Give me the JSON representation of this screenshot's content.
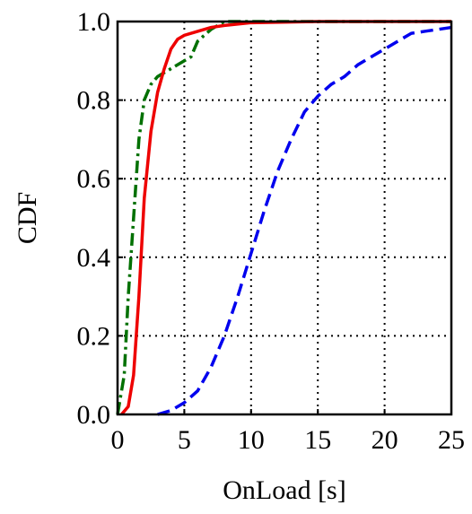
{
  "chart_data": {
    "type": "line",
    "xlabel": "OnLoad [s]",
    "ylabel": "CDF",
    "xlim": [
      0,
      25
    ],
    "xticks": [
      0,
      5,
      10,
      15,
      20,
      25
    ],
    "ylim": [
      0,
      1
    ],
    "yticks": [
      {
        "value": 0,
        "label": "0.0"
      },
      {
        "value": 0.2,
        "label": "0.2"
      },
      {
        "value": 0.4,
        "label": "0.4"
      },
      {
        "value": 0.6,
        "label": "0.6"
      },
      {
        "value": 0.8,
        "label": "0.8"
      },
      {
        "value": 1,
        "label": "1.0"
      }
    ],
    "grid": true,
    "series": [
      {
        "color": "#0000ee",
        "linestyle": "dashed",
        "x": [
          3,
          4,
          5,
          6,
          7,
          8,
          9,
          10,
          11,
          12,
          13,
          14,
          15,
          16,
          17,
          18,
          19,
          20,
          21,
          22,
          23,
          24,
          25
        ],
        "values": [
          0,
          0.01,
          0.03,
          0.06,
          0.12,
          0.2,
          0.3,
          0.41,
          0.52,
          0.62,
          0.7,
          0.77,
          0.81,
          0.84,
          0.86,
          0.89,
          0.91,
          0.93,
          0.95,
          0.97,
          0.975,
          0.98,
          0.985
        ]
      },
      {
        "color": "#007000",
        "linestyle": "dashdot",
        "x": [
          0,
          0.5,
          0.8,
          1.2,
          1.6,
          2,
          2.5,
          3,
          3.5,
          4,
          5,
          5.5,
          6,
          7,
          8,
          25
        ],
        "values": [
          0,
          0.1,
          0.3,
          0.5,
          0.7,
          0.8,
          0.84,
          0.86,
          0.87,
          0.88,
          0.9,
          0.91,
          0.95,
          0.98,
          1.0,
          1.0
        ]
      },
      {
        "color": "#ee0000",
        "linestyle": "solid",
        "x": [
          0.3,
          0.8,
          1.2,
          1.6,
          2,
          2.5,
          3,
          3.5,
          4,
          4.5,
          5,
          6,
          7,
          8,
          10,
          15,
          25
        ],
        "values": [
          0,
          0.02,
          0.1,
          0.3,
          0.55,
          0.72,
          0.82,
          0.88,
          0.93,
          0.955,
          0.965,
          0.975,
          0.985,
          0.99,
          0.997,
          1.0,
          1.0
        ]
      }
    ]
  }
}
